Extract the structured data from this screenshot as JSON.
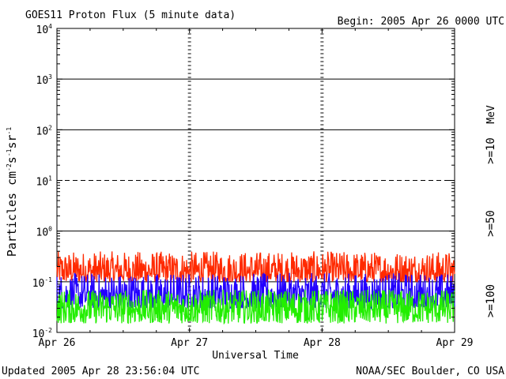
{
  "chart_data": {
    "type": "line",
    "title": "GOES11 Proton Flux (5 minute data)",
    "begin_label": "Begin: 2005 Apr 26 0000 UTC",
    "xlabel": "Universal Time",
    "ylabel_main": "Particles cm",
    "ylabel_exp1": "-2",
    "ylabel_s": "s",
    "ylabel_exp2": "-1",
    "ylabel_sr": "sr",
    "ylabel_exp3": "-1",
    "yscale": "log",
    "ylim": [
      0.01,
      10000
    ],
    "y_ticks": [
      {
        "base": "10",
        "exp": "4"
      },
      {
        "base": "10",
        "exp": "3"
      },
      {
        "base": "10",
        "exp": "2"
      },
      {
        "base": "10",
        "exp": "1"
      },
      {
        "base": "10",
        "exp": "0"
      },
      {
        "base": "10",
        "exp": "-1"
      },
      {
        "base": "10",
        "exp": "-2"
      }
    ],
    "x_ticks": [
      "Apr 26",
      "Apr 27",
      "Apr 28",
      "Apr 29"
    ],
    "xlim": [
      "2005-04-26 00:00",
      "2005-04-29 00:00"
    ],
    "unit_label": "MeV",
    "series": [
      {
        "name": ">=10",
        "color": "#ff2a00",
        "typical_range": [
          0.1,
          0.4
        ]
      },
      {
        "name": ">=50",
        "color": "#2200ff",
        "typical_range": [
          0.03,
          0.15
        ]
      },
      {
        "name": ">=100",
        "color": "#22ee00",
        "typical_range": [
          0.015,
          0.07
        ]
      }
    ],
    "reference_lines": [
      {
        "value": 1000,
        "style": "solid"
      },
      {
        "value": 100,
        "style": "solid"
      },
      {
        "value": 10,
        "style": "dashed"
      },
      {
        "value": 1,
        "style": "solid"
      },
      {
        "value": 0.1,
        "style": "solid"
      }
    ],
    "grid": false
  },
  "footer": {
    "updated": "Updated 2005 Apr 28 23:56:04 UTC",
    "credit": "NOAA/SEC Boulder, CO USA"
  }
}
